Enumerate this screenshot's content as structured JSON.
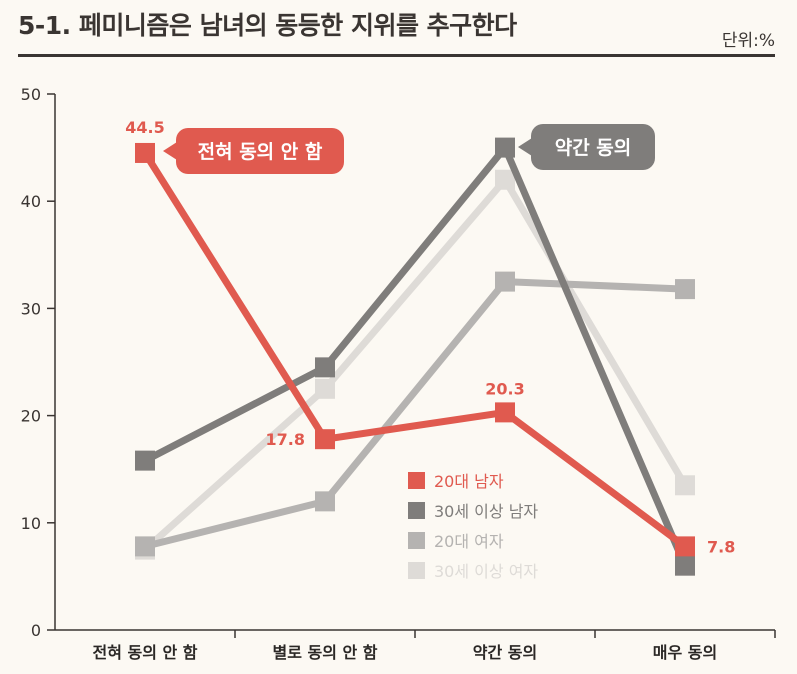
{
  "header": {
    "title": "5-1. 페미니즘은 남녀의 동등한 지위를 추구한다",
    "unit": "단위:%"
  },
  "chart_data": {
    "type": "line",
    "title": "5-1. 페미니즘은 남녀의 동등한 지위를 추구한다",
    "unit_label": "단위:%",
    "categories": [
      "전혀 동의 안 함",
      "별로 동의 안 함",
      "약간 동의",
      "매우 동의"
    ],
    "ylim": [
      0,
      50
    ],
    "yticks": [
      0,
      10,
      20,
      30,
      40,
      50
    ],
    "series": [
      {
        "name": "30세 이상 여자",
        "color": "#dedbd7",
        "values": [
          7.5,
          22.5,
          42.0,
          13.5
        ]
      },
      {
        "name": "20대 여자",
        "color": "#b5b3b1",
        "values": [
          7.8,
          12.0,
          32.5,
          31.8
        ]
      },
      {
        "name": "30세 이상 남자",
        "color": "#7f7d7b",
        "values": [
          15.8,
          24.5,
          45.0,
          6.0
        ]
      },
      {
        "name": "20대 남자",
        "color": "#e05a4f",
        "values": [
          44.5,
          17.8,
          20.3,
          7.8
        ]
      }
    ],
    "data_labels": [
      "44.5",
      "17.8",
      "20.3",
      "7.8"
    ],
    "legend_order": [
      "20대 남자",
      "30세 이상 남자",
      "20대 여자",
      "30세 이상 여자"
    ],
    "annotations": [
      {
        "text": "전혀 동의 안 함",
        "series": "20대 남자",
        "color": "#e05a4f"
      },
      {
        "text": "약간 동의",
        "series": "30세 이상 남자",
        "color": "#7f7d7b"
      }
    ]
  }
}
